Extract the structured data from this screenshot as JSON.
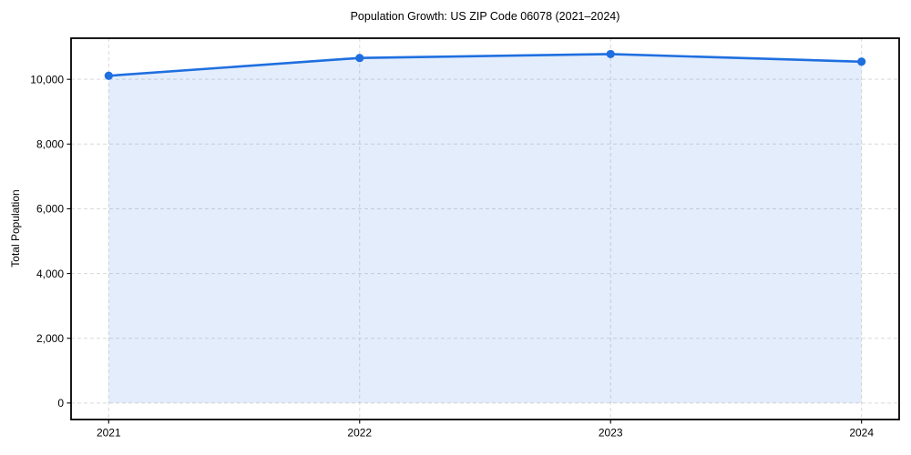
{
  "figure": {
    "title": "Population Growth: US ZIP Code 06078 (2021–2024)",
    "ylabel": "Total Population"
  },
  "chart_data": {
    "type": "line",
    "title": "Population Growth: US ZIP Code 06078 (2021–2024)",
    "xlabel": "",
    "ylabel": "Total Population",
    "x": [
      2021,
      2022,
      2023,
      2024
    ],
    "series": [
      {
        "name": "Total Population",
        "values": [
          10110,
          10660,
          10780,
          10545
        ]
      }
    ],
    "xticks": {
      "values": [
        2021,
        2022,
        2023,
        2024
      ],
      "labels": [
        "2021",
        "2022",
        "2023",
        "2024"
      ]
    },
    "yticks": {
      "values": [
        0,
        2000,
        4000,
        6000,
        8000,
        10000
      ],
      "labels": [
        "0",
        "2,000",
        "4,000",
        "6,000",
        "8,000",
        "10,000"
      ]
    },
    "xlim": [
      2020.85,
      2024.15
    ],
    "ylim": [
      -510,
      11270
    ],
    "grid": true,
    "grid_style": "dashed",
    "legend": false,
    "marker": "circle",
    "area_fill_to_zero": true,
    "colors": {
      "line": "#1f6fe0",
      "marker": "#1f6fe0",
      "fill": "rgba(31,111,224,0.12)",
      "grid": "#d9d9d9",
      "spine": "#000000",
      "tick_text": "#000000",
      "background": "#ffffff"
    }
  }
}
